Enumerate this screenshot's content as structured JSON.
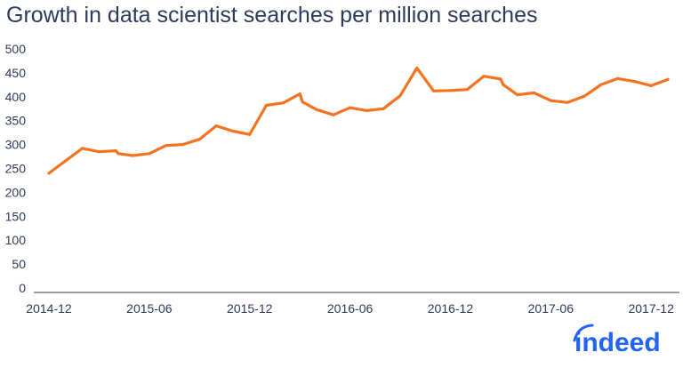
{
  "brand": {
    "logo_text": "indeed",
    "color": "#2164f3"
  },
  "chart_data": {
    "type": "line",
    "title": "Growth in data scientist searches per million searches",
    "xlabel": "",
    "ylabel": "",
    "ylim": [
      0,
      500
    ],
    "yticks": [
      0,
      50,
      100,
      150,
      200,
      250,
      300,
      350,
      400,
      450,
      500
    ],
    "xtick_labels": [
      "2014-12",
      "2015-06",
      "2015-12",
      "2016-06",
      "2016-12",
      "2017-06",
      "2017-12"
    ],
    "grid": false,
    "legend": "none",
    "line_color": "#f47321",
    "series": [
      {
        "x": [
          "2014-12",
          "2015-01",
          "2015-02",
          "2015-03",
          "2015-04",
          "2015-04",
          "2015-05",
          "2015-06",
          "2015-07",
          "2015-08",
          "2015-09",
          "2015-10",
          "2015-11",
          "2015-12",
          "2016-01",
          "2016-02",
          "2016-03",
          "2016-03",
          "2016-04",
          "2016-05",
          "2016-06",
          "2016-07",
          "2016-08",
          "2016-09",
          "2016-10",
          "2016-11",
          "2016-12",
          "2017-01",
          "2017-02",
          "2017-03",
          "2017-03",
          "2017-04",
          "2017-05",
          "2017-06",
          "2017-07",
          "2017-08",
          "2017-09",
          "2017-10",
          "2017-11",
          "2017-12",
          "2018-01"
        ],
        "values": [
          240,
          266,
          292,
          285,
          287,
          281,
          277,
          281,
          298,
          300,
          311,
          339,
          328,
          321,
          382,
          387,
          406,
          389,
          373,
          362,
          377,
          371,
          375,
          402,
          460,
          412,
          413,
          415,
          443,
          437,
          425,
          404,
          408,
          392,
          388,
          401,
          425,
          438,
          432,
          423,
          436
        ]
      }
    ]
  }
}
